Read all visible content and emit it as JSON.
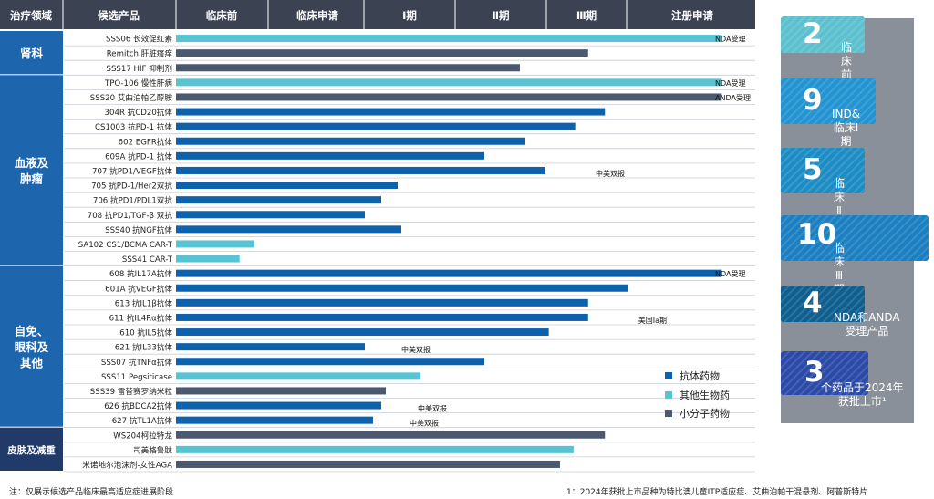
{
  "header": {
    "area": "治疗领域",
    "product": "候选产品",
    "phases": [
      "临床前",
      "临床申请",
      "Ⅰ期",
      "Ⅱ期",
      "Ⅲ期",
      "注册申请"
    ]
  },
  "areas": [
    {
      "label": "肾科"
    },
    {
      "label": "血液及\n肿瘤"
    },
    {
      "label": "自免、\n眼科及\n其他"
    },
    {
      "label": "皮肤及减重"
    }
  ],
  "legend": [
    {
      "label": "抗体药物",
      "color": "#0d61ad"
    },
    {
      "label": "其他生物药",
      "color": "#58c3d2"
    },
    {
      "label": "小分子药物",
      "color": "#4a5870"
    }
  ],
  "stats": [
    {
      "number": "2",
      "label": "临床前"
    },
    {
      "number": "9",
      "label": "IND&临床Ⅰ期"
    },
    {
      "number": "5",
      "label": "临床Ⅱ期"
    },
    {
      "number": "10",
      "label": "临床Ⅲ期"
    },
    {
      "number": "4",
      "label": "NDA和ANDA\n受理产品"
    },
    {
      "number": "3",
      "label": "个药品于2024年\n获批上市¹"
    }
  ],
  "footnotes": {
    "left": "注：仅展示候选产品临床最高适应症进展阶段",
    "right": "1：2024年获批上市品种为特比澳儿童ITP适应症、艾曲泊帕干混悬剂、阿普斯特片"
  },
  "colors": {
    "header_bg": "#3b4353",
    "area_blue": "#1d66ad",
    "area_navy": "#223a6a",
    "row_line": "#c9cdd3",
    "antibody": "#0d61ad",
    "biologic": "#58c3d2",
    "small_molecule": "#4a5870",
    "stat_bg": "#8a9099"
  },
  "chart_data": {
    "type": "bar",
    "orientation": "horizontal",
    "title": "",
    "xlabel": "",
    "ylabel": "",
    "x_scale": [
      "临床前",
      "临床申请",
      "Ⅰ期",
      "Ⅱ期",
      "Ⅲ期",
      "注册申请"
    ],
    "value_unit": "stage position (0 = start, 6 = end of 注册申请)",
    "xlim": [
      0,
      6
    ],
    "rows": [
      {
        "area": "肾科",
        "product": "SSS06 长效促红素",
        "type": "其他生物药",
        "value": 5.74,
        "annotation": "NDA受理"
      },
      {
        "area": "肾科",
        "product": "Remitch 肝脏瘙痒",
        "type": "小分子药物",
        "value": 4.52,
        "annotation": ""
      },
      {
        "area": "肾科",
        "product": "SSS17 HIF 抑制剂",
        "type": "小分子药物",
        "value": 3.71,
        "annotation": ""
      },
      {
        "area": "血液及肿瘤",
        "product": "TPO-106 慢性肝病",
        "type": "其他生物药",
        "value": 5.74,
        "annotation": "NDA受理"
      },
      {
        "area": "血液及肿瘤",
        "product": "SSS20 艾曲泊帕乙醇胺",
        "type": "小分子药物",
        "value": 5.74,
        "annotation": "ANDA受理"
      },
      {
        "area": "血液及肿瘤",
        "product": "304R 抗CD20抗体",
        "type": "抗体药物",
        "value": 4.73,
        "annotation": ""
      },
      {
        "area": "血液及肿瘤",
        "product": "CS1003 抗PD-1 抗体",
        "type": "抗体药物",
        "value": 4.36,
        "annotation": ""
      },
      {
        "area": "血液及肿瘤",
        "product": "602 EGFR抗体",
        "type": "抗体药物",
        "value": 3.77,
        "annotation": ""
      },
      {
        "area": "血液及肿瘤",
        "product": "609A 抗PD-1 抗体",
        "type": "抗体药物",
        "value": 3.32,
        "annotation": ""
      },
      {
        "area": "血液及肿瘤",
        "product": "707 抗PD1/VEGF抗体",
        "type": "抗体药物",
        "value": 3.99,
        "annotation": "中美双报"
      },
      {
        "area": "血液及肿瘤",
        "product": "705 抗PD-1/Her2双抗",
        "type": "抗体药物",
        "value": 2.37,
        "annotation": ""
      },
      {
        "area": "血液及肿瘤",
        "product": "706 抗PD1/PDL1双抗",
        "type": "抗体药物",
        "value": 2.19,
        "annotation": ""
      },
      {
        "area": "血液及肿瘤",
        "product": "708 抗PD1/TGF-β 双抗",
        "type": "抗体药物",
        "value": 2.01,
        "annotation": ""
      },
      {
        "area": "血液及肿瘤",
        "product": "SSS40 抗NGF抗体",
        "type": "抗体药物",
        "value": 2.41,
        "annotation": ""
      },
      {
        "area": "血液及肿瘤",
        "product": "SA102 CS1/BCMA CAR-T",
        "type": "其他生物药",
        "value": 0.85,
        "annotation": ""
      },
      {
        "area": "血液及肿瘤",
        "product": "SSS41 CAR-T",
        "type": "其他生物药",
        "value": 0.69,
        "annotation": ""
      },
      {
        "area": "自免、眼科及其他",
        "product": "608 抗IL17A抗体",
        "type": "抗体药物",
        "value": 5.74,
        "annotation": "NDA受理"
      },
      {
        "area": "自免、眼科及其他",
        "product": "601A 抗VEGF抗体",
        "type": "抗体药物",
        "value": 5.01,
        "annotation": ""
      },
      {
        "area": "自免、眼科及其他",
        "product": "613 抗IL1β抗体",
        "type": "抗体药物",
        "value": 4.52,
        "annotation": ""
      },
      {
        "area": "自免、眼科及其他",
        "product": "611 抗IL4Rα抗体",
        "type": "抗体药物",
        "value": 4.52,
        "annotation": "美国Ⅰa期"
      },
      {
        "area": "自免、眼科及其他",
        "product": "610 抗IL5抗体",
        "type": "抗体药物",
        "value": 4.03,
        "annotation": ""
      },
      {
        "area": "自免、眼科及其他",
        "product": "621 抗IL33抗体",
        "type": "抗体药物",
        "value": 2.01,
        "annotation": "中美双报"
      },
      {
        "area": "自免、眼科及其他",
        "product": "SSS07 抗TNFα抗体",
        "type": "抗体药物",
        "value": 3.32,
        "annotation": ""
      },
      {
        "area": "自免、眼科及其他",
        "product": "SSS11 Pegsiticase",
        "type": "其他生物药",
        "value": 2.62,
        "annotation": ""
      },
      {
        "area": "自免、眼科及其他",
        "product": "SSS39 雷替赛罗纳米粒",
        "type": "小分子药物",
        "value": 2.24,
        "annotation": ""
      },
      {
        "area": "自免、眼科及其他",
        "product": "626 抗BDCA2抗体",
        "type": "抗体药物",
        "value": 2.19,
        "annotation": "中美双报"
      },
      {
        "area": "自免、眼科及其他",
        "product": "627 抗TL1A抗体",
        "type": "抗体药物",
        "value": 2.1,
        "annotation": "中美双报"
      },
      {
        "area": "皮肤及减重",
        "product": "WS204柯拉特龙",
        "type": "小分子药物",
        "value": 4.73,
        "annotation": ""
      },
      {
        "area": "皮肤及减重",
        "product": "司美格鲁肽",
        "type": "其他生物药",
        "value": 4.34,
        "annotation": ""
      },
      {
        "area": "皮肤及减重",
        "product": "米诺地尔泡沫剂-女性AGA",
        "type": "小分子药物",
        "value": 4.17,
        "annotation": ""
      }
    ]
  }
}
